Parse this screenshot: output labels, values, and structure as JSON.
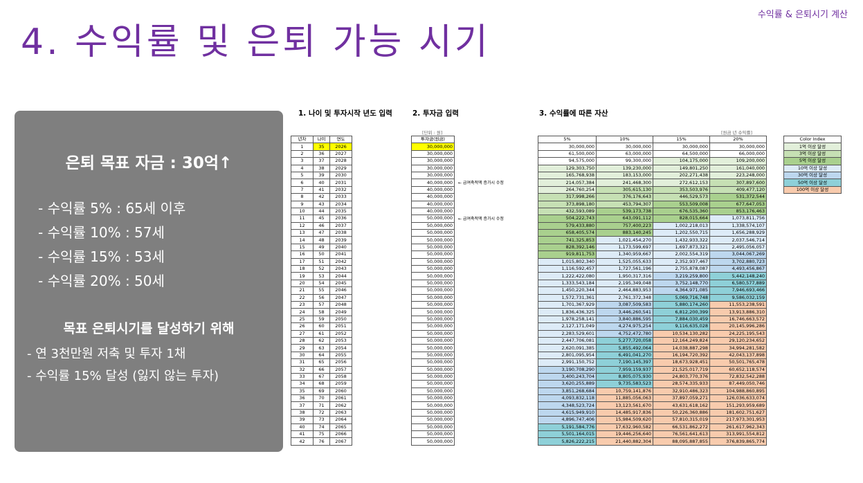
{
  "header_tag": "수익률 & 은퇴시기 계산",
  "title": "4. 수익률 및 은퇴 가능 시기",
  "left_panel": {
    "goal": "은퇴 목표 자금 : 30억↑",
    "rates": [
      "- 수익률   5% : 65세 이후",
      "- 수익률 10% : 57세",
      "- 수익률 15% : 53세",
      "- 수익률 20% : 50세"
    ],
    "plan_title": "목표 은퇴시기를 달성하기 위해",
    "plan": [
      "- 연 3천만원 저축 및 투자 1채",
      "- 수익률 15% 달성 (잃지 않는 투자)"
    ]
  },
  "sections": {
    "s1": "1. 나이 및 투자시작 년도 입력",
    "s2": "2. 투자금 입력",
    "s3": "3. 수익률에 따른 자산"
  },
  "unit_invest": "[단위 : 원]",
  "unit_asset": "[원금 년 수익률]",
  "headers": {
    "year_no": "년차",
    "age": "나이",
    "year": "연도",
    "invest": "투자금(원금)",
    "r5": "5%",
    "r10": "10%",
    "r15": "15%",
    "r20": "20%"
  },
  "notes": {
    "n1": "← 급여축적액 증가시 수정",
    "n2": "← 급여축적액 증가시 수정"
  },
  "legend": {
    "title": "Color Index",
    "items": [
      {
        "label": "1억 이상 달성",
        "color": "#e2efda"
      },
      {
        "label": "3억 이상 달성",
        "color": "#c6e0b4"
      },
      {
        "label": "5억 이상 달성",
        "color": "#a9d08e"
      },
      {
        "label": "10억 이상 달성",
        "color": "#ddebf7"
      },
      {
        "label": "30억 이상 달성",
        "color": "#bdd7ee"
      },
      {
        "label": "50억 이상 달성",
        "color": "#8ed0d8"
      },
      {
        "label": "100억 이상 달성",
        "color": "#f8cbad"
      }
    ]
  },
  "rows": [
    {
      "n": "1",
      "age": "35",
      "year": "2026",
      "inv": "30,000,000",
      "r5": "30,000,000",
      "r10": "30,000,000",
      "r15": "30,000,000",
      "r20": "30,000,000"
    },
    {
      "n": "2",
      "age": "36",
      "year": "2027",
      "inv": "30,000,000",
      "r5": "61,500,000",
      "r10": "63,000,000",
      "r15": "64,500,000",
      "r20": "66,000,000"
    },
    {
      "n": "3",
      "age": "37",
      "year": "2028",
      "inv": "30,000,000",
      "r5": "94,575,000",
      "r10": "99,300,000",
      "r15": "104,175,000",
      "r20": "109,200,000"
    },
    {
      "n": "4",
      "age": "38",
      "year": "2029",
      "inv": "30,000,000",
      "r5": "129,303,750",
      "r10": "139,230,000",
      "r15": "149,801,250",
      "r20": "161,040,000"
    },
    {
      "n": "5",
      "age": "39",
      "year": "2030",
      "inv": "30,000,000",
      "r5": "165,768,938",
      "r10": "183,153,000",
      "r15": "202,271,438",
      "r20": "223,248,000"
    },
    {
      "n": "6",
      "age": "40",
      "year": "2031",
      "inv": "40,000,000",
      "r5": "214,057,384",
      "r10": "241,468,300",
      "r15": "272,612,153",
      "r20": "307,897,600"
    },
    {
      "n": "7",
      "age": "41",
      "year": "2032",
      "inv": "40,000,000",
      "r5": "264,760,254",
      "r10": "305,615,130",
      "r15": "353,503,976",
      "r20": "409,477,120"
    },
    {
      "n": "8",
      "age": "42",
      "year": "2033",
      "inv": "40,000,000",
      "r5": "317,998,266",
      "r10": "376,176,643",
      "r15": "446,529,573",
      "r20": "531,372,544"
    },
    {
      "n": "9",
      "age": "43",
      "year": "2034",
      "inv": "40,000,000",
      "r5": "373,898,180",
      "r10": "453,794,307",
      "r15": "553,509,008",
      "r20": "677,647,053"
    },
    {
      "n": "10",
      "age": "44",
      "year": "2035",
      "inv": "40,000,000",
      "r5": "432,593,089",
      "r10": "539,173,738",
      "r15": "676,535,360",
      "r20": "853,176,463"
    },
    {
      "n": "11",
      "age": "45",
      "year": "2036",
      "inv": "50,000,000",
      "r5": "504,222,743",
      "r10": "643,091,112",
      "r15": "828,015,664",
      "r20": "1,073,811,756"
    },
    {
      "n": "12",
      "age": "46",
      "year": "2037",
      "inv": "50,000,000",
      "r5": "579,433,880",
      "r10": "757,400,223",
      "r15": "1,002,218,013",
      "r20": "1,338,574,107"
    },
    {
      "n": "13",
      "age": "47",
      "year": "2038",
      "inv": "50,000,000",
      "r5": "658,405,574",
      "r10": "883,140,245",
      "r15": "1,202,550,715",
      "r20": "1,656,288,929"
    },
    {
      "n": "14",
      "age": "48",
      "year": "2039",
      "inv": "50,000,000",
      "r5": "741,325,853",
      "r10": "1,021,454,270",
      "r15": "1,432,933,322",
      "r20": "2,037,546,714"
    },
    {
      "n": "15",
      "age": "49",
      "year": "2040",
      "inv": "50,000,000",
      "r5": "828,392,146",
      "r10": "1,173,599,697",
      "r15": "1,697,873,321",
      "r20": "2,495,056,057"
    },
    {
      "n": "16",
      "age": "50",
      "year": "2041",
      "inv": "50,000,000",
      "r5": "919,811,753",
      "r10": "1,340,959,667",
      "r15": "2,002,554,319",
      "r20": "3,044,067,269"
    },
    {
      "n": "17",
      "age": "51",
      "year": "2042",
      "inv": "50,000,000",
      "r5": "1,015,802,340",
      "r10": "1,525,055,633",
      "r15": "2,352,937,467",
      "r20": "3,702,880,723"
    },
    {
      "n": "18",
      "age": "52",
      "year": "2043",
      "inv": "50,000,000",
      "r5": "1,116,592,457",
      "r10": "1,727,561,196",
      "r15": "2,755,878,087",
      "r20": "4,493,456,867"
    },
    {
      "n": "19",
      "age": "53",
      "year": "2044",
      "inv": "50,000,000",
      "r5": "1,222,422,080",
      "r10": "1,950,317,316",
      "r15": "3,219,259,800",
      "r20": "5,442,148,240"
    },
    {
      "n": "20",
      "age": "54",
      "year": "2045",
      "inv": "50,000,000",
      "r5": "1,333,543,184",
      "r10": "2,195,349,048",
      "r15": "3,752,148,770",
      "r20": "6,580,577,889"
    },
    {
      "n": "21",
      "age": "55",
      "year": "2046",
      "inv": "50,000,000",
      "r5": "1,450,220,344",
      "r10": "2,464,883,953",
      "r15": "4,364,971,085",
      "r20": "7,946,693,466"
    },
    {
      "n": "22",
      "age": "56",
      "year": "2047",
      "inv": "50,000,000",
      "r5": "1,572,731,361",
      "r10": "2,761,372,348",
      "r15": "5,069,716,748",
      "r20": "9,586,032,159"
    },
    {
      "n": "23",
      "age": "57",
      "year": "2048",
      "inv": "50,000,000",
      "r5": "1,701,367,929",
      "r10": "3,087,509,583",
      "r15": "5,880,174,260",
      "r20": "11,553,238,591"
    },
    {
      "n": "24",
      "age": "58",
      "year": "2049",
      "inv": "50,000,000",
      "r5": "1,836,436,325",
      "r10": "3,446,260,541",
      "r15": "6,812,200,399",
      "r20": "13,913,886,310"
    },
    {
      "n": "25",
      "age": "59",
      "year": "2050",
      "inv": "50,000,000",
      "r5": "1,978,258,141",
      "r10": "3,840,886,595",
      "r15": "7,884,030,459",
      "r20": "16,746,663,572"
    },
    {
      "n": "26",
      "age": "60",
      "year": "2051",
      "inv": "50,000,000",
      "r5": "2,127,171,049",
      "r10": "4,274,975,254",
      "r15": "9,116,635,028",
      "r20": "20,145,996,286"
    },
    {
      "n": "27",
      "age": "61",
      "year": "2052",
      "inv": "50,000,000",
      "r5": "2,283,529,601",
      "r10": "4,752,472,780",
      "r15": "10,534,130,282",
      "r20": "24,225,195,543"
    },
    {
      "n": "28",
      "age": "62",
      "year": "2053",
      "inv": "50,000,000",
      "r5": "2,447,706,081",
      "r10": "5,277,720,058",
      "r15": "12,164,249,824",
      "r20": "29,120,234,652"
    },
    {
      "n": "29",
      "age": "63",
      "year": "2054",
      "inv": "50,000,000",
      "r5": "2,620,091,385",
      "r10": "5,855,492,064",
      "r15": "14,038,887,298",
      "r20": "34,994,281,582"
    },
    {
      "n": "30",
      "age": "64",
      "year": "2055",
      "inv": "50,000,000",
      "r5": "2,801,095,954",
      "r10": "6,491,041,270",
      "r15": "16,194,720,392",
      "r20": "42,043,137,898"
    },
    {
      "n": "31",
      "age": "65",
      "year": "2056",
      "inv": "50,000,000",
      "r5": "2,991,150,752",
      "r10": "7,190,145,397",
      "r15": "18,673,928,451",
      "r20": "50,501,765,478"
    },
    {
      "n": "32",
      "age": "66",
      "year": "2057",
      "inv": "50,000,000",
      "r5": "3,190,708,290",
      "r10": "7,959,159,937",
      "r15": "21,525,017,719",
      "r20": "60,652,118,574"
    },
    {
      "n": "33",
      "age": "67",
      "year": "2058",
      "inv": "50,000,000",
      "r5": "3,400,243,704",
      "r10": "8,805,075,930",
      "r15": "24,803,770,376",
      "r20": "72,832,542,288"
    },
    {
      "n": "34",
      "age": "68",
      "year": "2059",
      "inv": "50,000,000",
      "r5": "3,620,255,889",
      "r10": "9,735,583,523",
      "r15": "28,574,335,933",
      "r20": "87,449,050,746"
    },
    {
      "n": "35",
      "age": "69",
      "year": "2060",
      "inv": "50,000,000",
      "r5": "3,851,268,684",
      "r10": "10,759,141,876",
      "r15": "32,910,486,323",
      "r20": "104,988,860,895"
    },
    {
      "n": "36",
      "age": "70",
      "year": "2061",
      "inv": "50,000,000",
      "r5": "4,093,832,118",
      "r10": "11,885,056,063",
      "r15": "37,897,059,271",
      "r20": "126,036,633,074"
    },
    {
      "n": "37",
      "age": "71",
      "year": "2062",
      "inv": "50,000,000",
      "r5": "4,348,523,724",
      "r10": "13,123,561,670",
      "r15": "43,631,618,162",
      "r20": "151,293,959,689"
    },
    {
      "n": "38",
      "age": "72",
      "year": "2063",
      "inv": "50,000,000",
      "r5": "4,615,949,910",
      "r10": "14,485,917,836",
      "r15": "50,226,360,886",
      "r20": "181,602,751,627"
    },
    {
      "n": "39",
      "age": "73",
      "year": "2064",
      "inv": "50,000,000",
      "r5": "4,896,747,406",
      "r10": "15,984,509,620",
      "r15": "57,810,315,019",
      "r20": "217,973,301,953"
    },
    {
      "n": "40",
      "age": "74",
      "year": "2065",
      "inv": "50,000,000",
      "r5": "5,191,584,776",
      "r10": "17,632,960,582",
      "r15": "66,531,862,272",
      "r20": "261,617,962,343"
    },
    {
      "n": "41",
      "age": "75",
      "year": "2066",
      "inv": "50,000,000",
      "r5": "5,501,164,015",
      "r10": "19,446,256,640",
      "r15": "76,561,641,613",
      "r20": "313,991,554,812"
    },
    {
      "n": "42",
      "age": "76",
      "year": "2067",
      "inv": "50,000,000",
      "r5": "5,826,222,215",
      "r10": "21,440,882,304",
      "r15": "88,095,887,855",
      "r20": "376,839,865,774"
    }
  ]
}
